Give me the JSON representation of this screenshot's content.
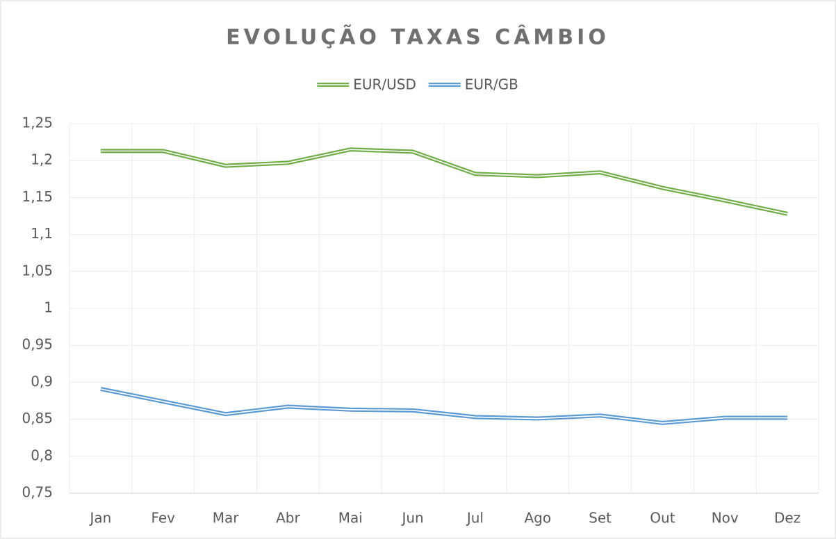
{
  "chart_data": {
    "type": "line",
    "title": "EVOLUÇÃO TAXAS CÂMBIO",
    "categories": [
      "Jan",
      "Fev",
      "Mar",
      "Abr",
      "Mai",
      "Jun",
      "Jul",
      "Ago",
      "Set",
      "Out",
      "Nov",
      "Dez"
    ],
    "series": [
      {
        "name": "EUR/USD",
        "color": "#70ad47",
        "values": [
          1.213,
          1.213,
          1.193,
          1.197,
          1.215,
          1.212,
          1.182,
          1.179,
          1.184,
          1.163,
          1.146,
          1.128
        ]
      },
      {
        "name": "EUR/GB",
        "color": "#5b9bd5",
        "values": [
          0.891,
          0.874,
          0.857,
          0.867,
          0.863,
          0.862,
          0.853,
          0.851,
          0.855,
          0.845,
          0.852,
          0.852
        ]
      }
    ],
    "ylim": [
      0.75,
      1.25
    ],
    "yticks": [
      {
        "value": 0.75,
        "label": "0,75"
      },
      {
        "value": 0.8,
        "label": "0,8"
      },
      {
        "value": 0.85,
        "label": "0,85"
      },
      {
        "value": 0.9,
        "label": "0,9"
      },
      {
        "value": 0.95,
        "label": "0,95"
      },
      1,
      {
        "value": 1.05,
        "label": "1,05"
      },
      {
        "value": 1.1,
        "label": "1,1"
      },
      {
        "value": 1.15,
        "label": "1,15"
      },
      {
        "value": 1.2,
        "label": "1,2"
      },
      {
        "value": 1.25,
        "label": "1,25"
      }
    ],
    "grid": true,
    "legend": "top"
  }
}
